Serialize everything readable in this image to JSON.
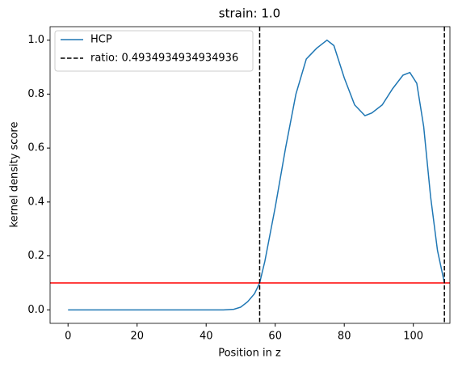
{
  "chart_data": {
    "type": "line",
    "title": "strain: 1.0",
    "x_label": "Position in z",
    "y_label": "kernel density score",
    "series": [
      {
        "name": "HCP",
        "color": "#1f77b4",
        "x": [
          0,
          10,
          20,
          30,
          40,
          45,
          48,
          50,
          52,
          54,
          55.5,
          57,
          60,
          63,
          66,
          69,
          72,
          75,
          77,
          80,
          83,
          86,
          88,
          91,
          94,
          97,
          99,
          101,
          103,
          105,
          107,
          109
        ],
        "values": [
          0,
          0,
          0,
          0,
          0,
          0,
          0.002,
          0.01,
          0.03,
          0.06,
          0.1,
          0.18,
          0.38,
          0.6,
          0.8,
          0.93,
          0.97,
          1.0,
          0.98,
          0.86,
          0.76,
          0.72,
          0.73,
          0.76,
          0.82,
          0.87,
          0.88,
          0.84,
          0.68,
          0.42,
          0.22,
          0.1
        ]
      }
    ],
    "vlines": {
      "name": "ratio: 0.4934934934934936",
      "color": "#000000",
      "x": [
        55.5,
        109
      ]
    },
    "hline": {
      "y": 0.1,
      "color": "#ff0000"
    },
    "xlim": [
      -5.2,
      110.6
    ],
    "ylim": [
      -0.05,
      1.05
    ],
    "xticks": [
      0,
      20,
      40,
      60,
      80,
      100
    ],
    "yticks": [
      {
        "value": 0,
        "label": "0.0"
      },
      {
        "value": 0.2,
        "label": "0.2"
      },
      {
        "value": 0.4,
        "label": "0.4"
      },
      {
        "value": 0.6,
        "label": "0.6"
      },
      {
        "value": 0.8,
        "label": "0.8"
      },
      {
        "value": 1.0,
        "label": "1.0"
      }
    ],
    "legend": "upper left"
  }
}
